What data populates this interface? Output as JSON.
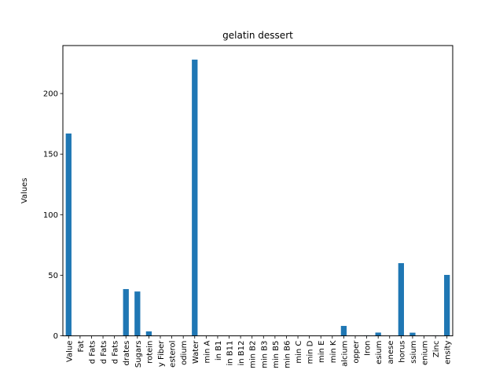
{
  "chart_data": {
    "type": "bar",
    "title": "gelatin dessert",
    "xlabel": "",
    "ylabel": "Values",
    "ylim": [
      0,
      239.6
    ],
    "yticks": [
      0,
      50,
      100,
      150,
      200
    ],
    "grid": false,
    "legend": "none",
    "bar_color": "#1f77b4",
    "categories": [
      "Value",
      "Fat",
      "d Fats",
      "d Fats",
      "d Fats",
      "drates",
      "Sugars",
      "rotein",
      "y Fiber",
      "esterol",
      "odium",
      "Water",
      "min A",
      "in B1",
      "in B11",
      "in B12",
      "min B2",
      "min B3",
      "min B5",
      "min B6",
      "min C",
      "min D",
      "min E",
      "min K",
      "alcium",
      "opper",
      "Iron",
      "esium",
      "anese",
      "horus",
      "ssium",
      "enium",
      "Zinc",
      "ensity"
    ],
    "values": [
      167,
      0,
      0,
      0,
      0,
      38.6,
      36.6,
      3.7,
      0,
      0,
      0,
      228,
      0,
      0,
      0,
      0,
      0,
      0,
      0,
      0,
      0,
      0,
      0,
      0,
      8.2,
      0,
      0.3,
      2.7,
      0,
      60,
      2.6,
      0,
      0.2,
      50.3
    ]
  }
}
